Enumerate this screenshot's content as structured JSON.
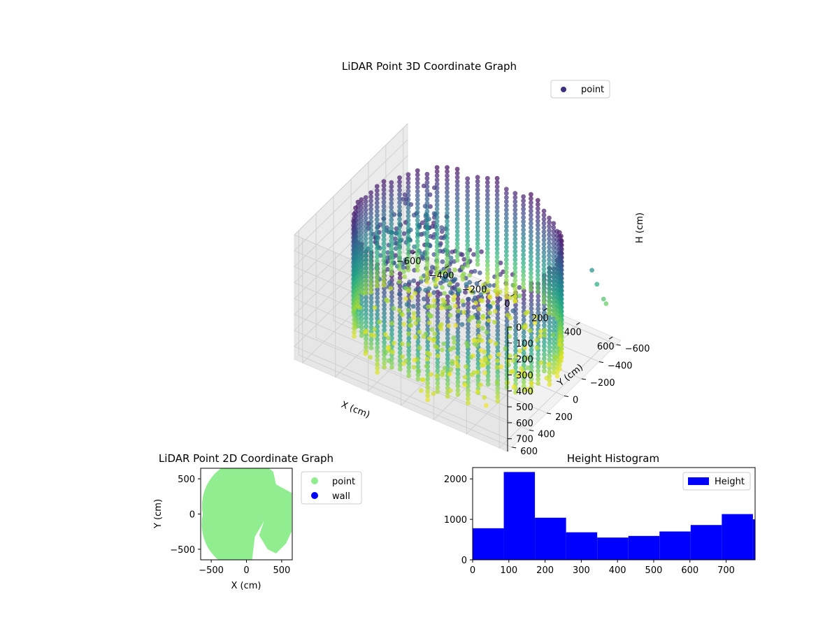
{
  "chart_data": [
    {
      "type": "scatter",
      "dimensions": 3,
      "title": "LiDAR Point 3D Coordinate Graph",
      "xlabel": "X (cm)",
      "ylabel": "Y (cm)",
      "zlabel": "H (cm)",
      "xlim": [
        -650,
        650
      ],
      "ylim": [
        -650,
        650
      ],
      "zlim": [
        0,
        780
      ],
      "z_inverted": true,
      "x_ticks": [
        "−600",
        "−400",
        "−200",
        "0",
        "200",
        "400",
        "600"
      ],
      "y_ticks": [
        "−600",
        "−400",
        "−200",
        "0",
        "200",
        "400",
        "600"
      ],
      "z_ticks": [
        "0",
        "100",
        "200",
        "300",
        "400",
        "500",
        "600",
        "700"
      ],
      "colormap": "viridis",
      "legend": {
        "position": "top-right",
        "entries": [
          {
            "label": "point",
            "color": "#3b2f7f"
          }
        ]
      },
      "grid": true,
      "series": [
        {
          "name": "point",
          "description_shape": "cylindrical ring of scan columns around the origin, radius about 560 cm, heights 0-780 cm",
          "points_sample": [
            [
              -560,
              0,
              60
            ],
            [
              -560,
              0,
              740
            ],
            [
              0,
              560,
              40
            ],
            [
              0,
              560,
              760
            ],
            [
              560,
              0,
              50
            ],
            [
              560,
              0,
              700
            ],
            [
              0,
              -560,
              60
            ],
            [
              0,
              -560,
              720
            ],
            [
              -400,
              -400,
              60
            ],
            [
              -400,
              -400,
              760
            ],
            [
              400,
              400,
              80
            ],
            [
              400,
              400,
              740
            ],
            [
              200,
              -200,
              120
            ],
            [
              300,
              -50,
              150
            ],
            [
              -100,
              100,
              100
            ],
            [
              150,
              150,
              110
            ],
            [
              500,
              -600,
              380
            ],
            [
              520,
              -620,
              470
            ],
            [
              550,
              -640,
              560
            ],
            [
              560,
              -650,
              590
            ]
          ]
        }
      ]
    },
    {
      "type": "scatter",
      "title": "LiDAR Point 2D Coordinate Graph",
      "xlabel": "X (cm)",
      "ylabel": "Y (cm)",
      "xlim": [
        -650,
        650
      ],
      "ylim": [
        -650,
        650
      ],
      "x_ticks": [
        "−500",
        "0",
        "500"
      ],
      "y_ticks": [
        "−500",
        "0",
        "500"
      ],
      "legend": {
        "position": "right",
        "entries": [
          {
            "label": "point",
            "color": "#90ee90"
          },
          {
            "label": "wall",
            "color": "#0000ff"
          }
        ]
      },
      "series": [
        {
          "name": "point",
          "color": "#90ee90",
          "shape": "filled disc approx. radius 600 cm with a notch on the right side"
        },
        {
          "name": "wall",
          "color": "#0000ff",
          "points": []
        }
      ]
    },
    {
      "type": "bar",
      "subtype": "histogram",
      "title": "Height Histogram",
      "xlabel": "",
      "ylabel": "",
      "xlim": [
        0,
        780
      ],
      "ylim": [
        0,
        2280
      ],
      "x_ticks": [
        "0",
        "100",
        "200",
        "300",
        "400",
        "500",
        "600",
        "700"
      ],
      "y_ticks": [
        "0",
        "1000",
        "2000"
      ],
      "bin_edges": [
        0,
        86,
        172,
        258,
        344,
        430,
        516,
        602,
        688,
        774,
        860
      ],
      "values": [
        780,
        2170,
        1040,
        680,
        550,
        590,
        700,
        860,
        1130,
        1000
      ],
      "color": "#0000ff",
      "legend": {
        "position": "top-right",
        "entries": [
          {
            "label": "Height",
            "color": "#0000ff"
          }
        ]
      }
    }
  ]
}
